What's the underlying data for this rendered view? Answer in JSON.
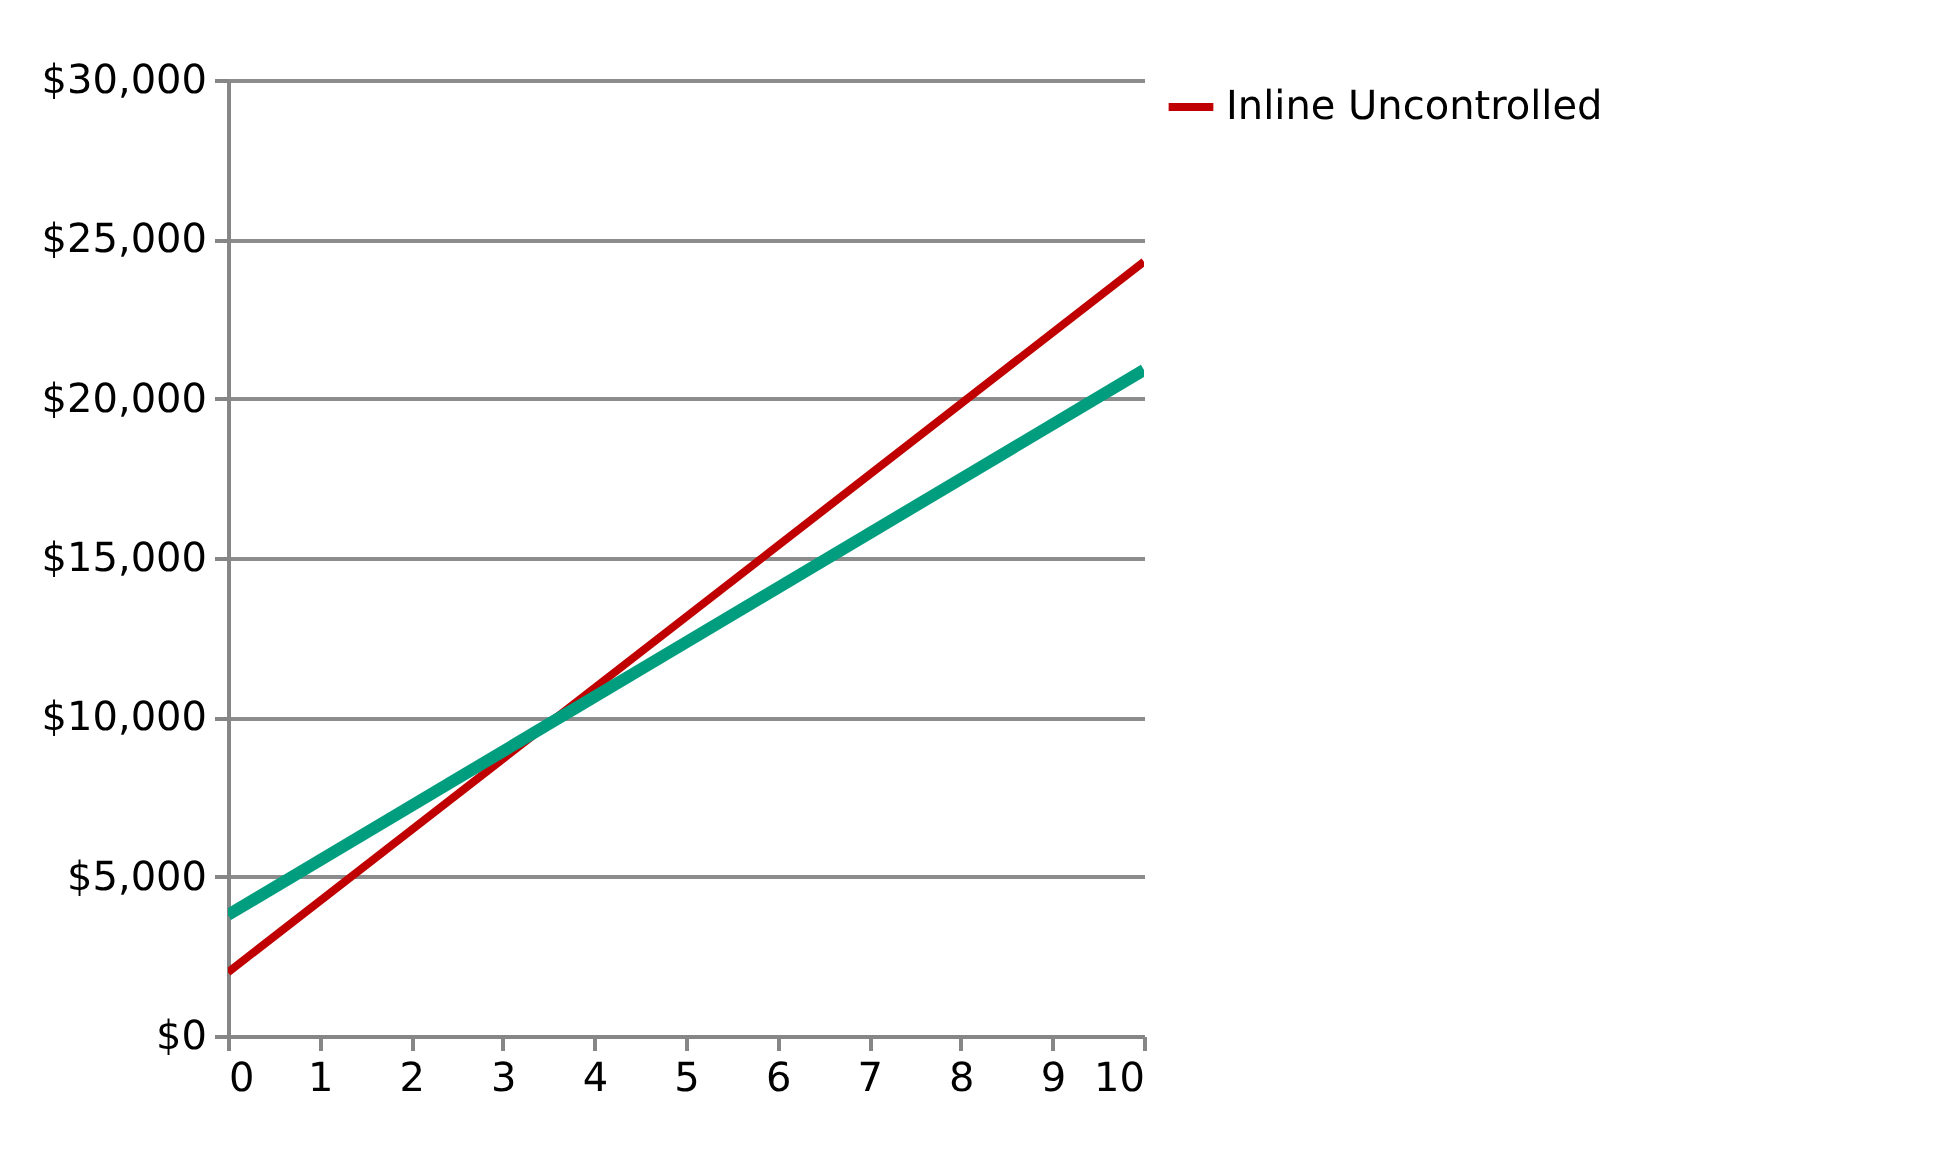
{
  "chart_data": {
    "type": "line",
    "x": [
      0,
      10
    ],
    "series": [
      {
        "name": "Inline Uncontrolled",
        "color": "#c00000",
        "values": [
          2000,
          24300
        ]
      },
      {
        "color": "#009e7e",
        "values": [
          3800,
          20900
        ]
      }
    ],
    "xlim": [
      0,
      10
    ],
    "xticks": [
      0,
      1,
      2,
      3,
      4,
      5,
      6,
      7,
      8,
      9,
      10
    ],
    "ylim": [
      0,
      30000
    ],
    "yticks": [
      {
        "value": 0,
        "label": "$0"
      },
      {
        "value": 5000,
        "label": "$5,000"
      },
      {
        "value": 10000,
        "label": "$10,000"
      },
      {
        "value": 15000,
        "label": "$15,000"
      },
      {
        "value": 20000,
        "label": "$20,000"
      },
      {
        "value": 25000,
        "label": "$25,000"
      },
      {
        "value": 30000,
        "label": "$30,000"
      }
    ],
    "grid": "y",
    "legend": "right",
    "marker": "none",
    "line_style": "solid"
  }
}
